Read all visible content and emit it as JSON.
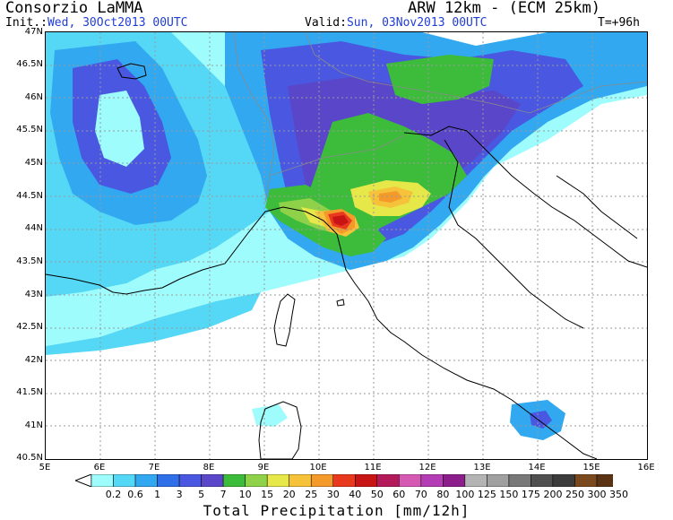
{
  "header": {
    "org": "Consorzio LaMMA",
    "model": "ARW 12km - (ECM 25km)",
    "init_label": "Init.:",
    "init_value": "Wed, 30Oct2013 00UTC",
    "valid_label": "Valid:",
    "valid_value": "Sun, 03Nov2013 00UTC",
    "lead": "T=+96h"
  },
  "axes": {
    "lat_labels": [
      "47N",
      "46.5N",
      "46N",
      "45.5N",
      "45N",
      "44.5N",
      "44N",
      "43.5N",
      "43N",
      "42.5N",
      "42N",
      "41.5N",
      "41N",
      "40.5N"
    ],
    "lon_labels": [
      "5E",
      "6E",
      "7E",
      "8E",
      "9E",
      "10E",
      "11E",
      "12E",
      "13E",
      "14E",
      "15E",
      "16E"
    ]
  },
  "colorbar": {
    "title": "Total Precipitation [mm/12h]",
    "levels": [
      "0.2",
      "0.6",
      "1",
      "3",
      "5",
      "7",
      "10",
      "15",
      "20",
      "25",
      "30",
      "40",
      "50",
      "60",
      "70",
      "80",
      "100",
      "125",
      "150",
      "175",
      "200",
      "250",
      "300",
      "350"
    ],
    "colors": [
      "#9ffcfc",
      "#55d8f5",
      "#31a8f0",
      "#2f6fe8",
      "#4a57e0",
      "#5a46c8",
      "#3dbc3c",
      "#8fd24a",
      "#e6e84a",
      "#f5c23a",
      "#f49a2a",
      "#e8391e",
      "#c81414",
      "#b41a5a",
      "#d65ab4",
      "#b43cb4",
      "#8c1e8c",
      "#b4b4b4",
      "#a0a0a0",
      "#787878",
      "#505050",
      "#3c3c3c",
      "#7a4a1e",
      "#5a3214",
      "#3c2008"
    ]
  },
  "colors": {
    "blue_text": "#1f3dd6"
  }
}
